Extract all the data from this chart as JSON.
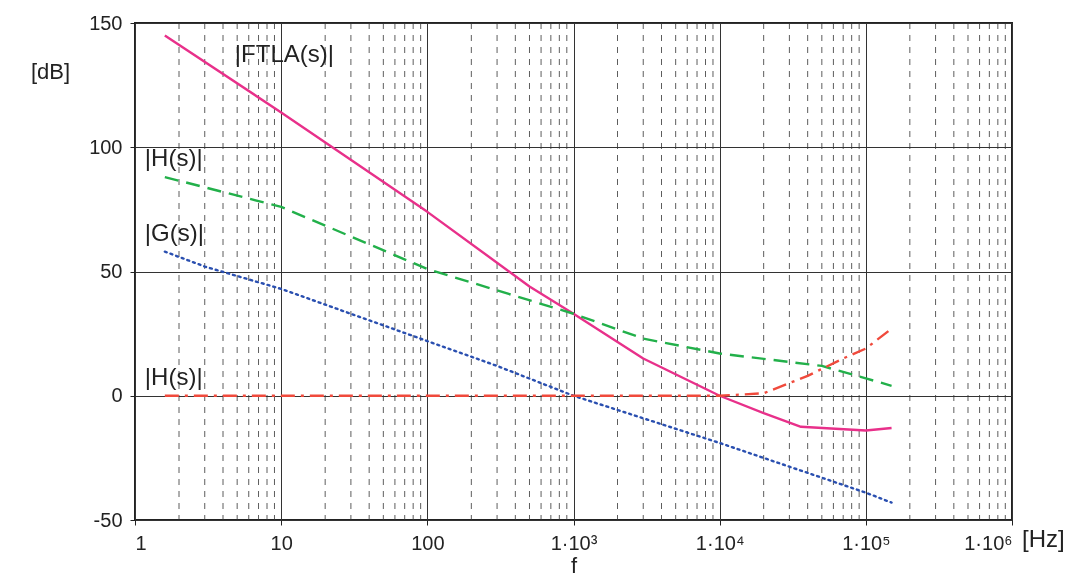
{
  "chart_data": {
    "type": "line",
    "ylabel": "[dB]",
    "xlabel": "f",
    "log": "x",
    "grid": true,
    "xlim": [
      1,
      1000000
    ],
    "xticks": [
      1,
      10,
      100,
      {
        "value": 1000,
        "label": "1·10³"
      },
      {
        "value": 10000,
        "label": "1·10⁴"
      },
      {
        "value": 100000,
        "label": "1·10⁵"
      },
      {
        "value": 1000000,
        "label": "1·10⁶"
      }
    ],
    "ylim": [
      -50,
      150
    ],
    "yticks": [
      -50,
      0,
      50,
      100,
      150
    ],
    "series": [
      {
        "name": "|FTLA(s)|",
        "color": "#e8308a",
        "line_style": "solid",
        "x": [
          1.6,
          10,
          100,
          500,
          1000,
          3000,
          10000,
          20000,
          36000,
          100000,
          150000
        ],
        "values": [
          145,
          114,
          74,
          44,
          33,
          15,
          0,
          -7,
          -12.5,
          -14,
          -13
        ]
      },
      {
        "name": "|H(s)|",
        "color": "#22b04a",
        "line_style": "dashed",
        "x": [
          1.6,
          10,
          100,
          1000,
          3000,
          10000,
          50000,
          100000,
          150000
        ],
        "values": [
          88,
          76,
          51,
          33,
          23,
          17,
          12,
          7,
          4
        ]
      },
      {
        "name": "|G(s)|",
        "color": "#2a4fb0",
        "line_style": "dotted",
        "x": [
          1.6,
          3,
          10,
          100,
          300,
          1000,
          10000,
          100000,
          150000
        ],
        "values": [
          58,
          52,
          43,
          22,
          12,
          0,
          -19,
          -39,
          -43
        ]
      },
      {
        "name": "|H(s)|",
        "color": "#f04a3c",
        "line_style": "dashdot",
        "x": [
          1.6,
          10,
          100,
          1000,
          10000,
          20000,
          40000,
          70000,
          100000,
          150000
        ],
        "values": [
          0,
          0,
          0,
          0,
          0,
          1,
          8,
          15,
          19,
          27
        ]
      }
    ],
    "annotations": [
      "[Hz]"
    ]
  }
}
